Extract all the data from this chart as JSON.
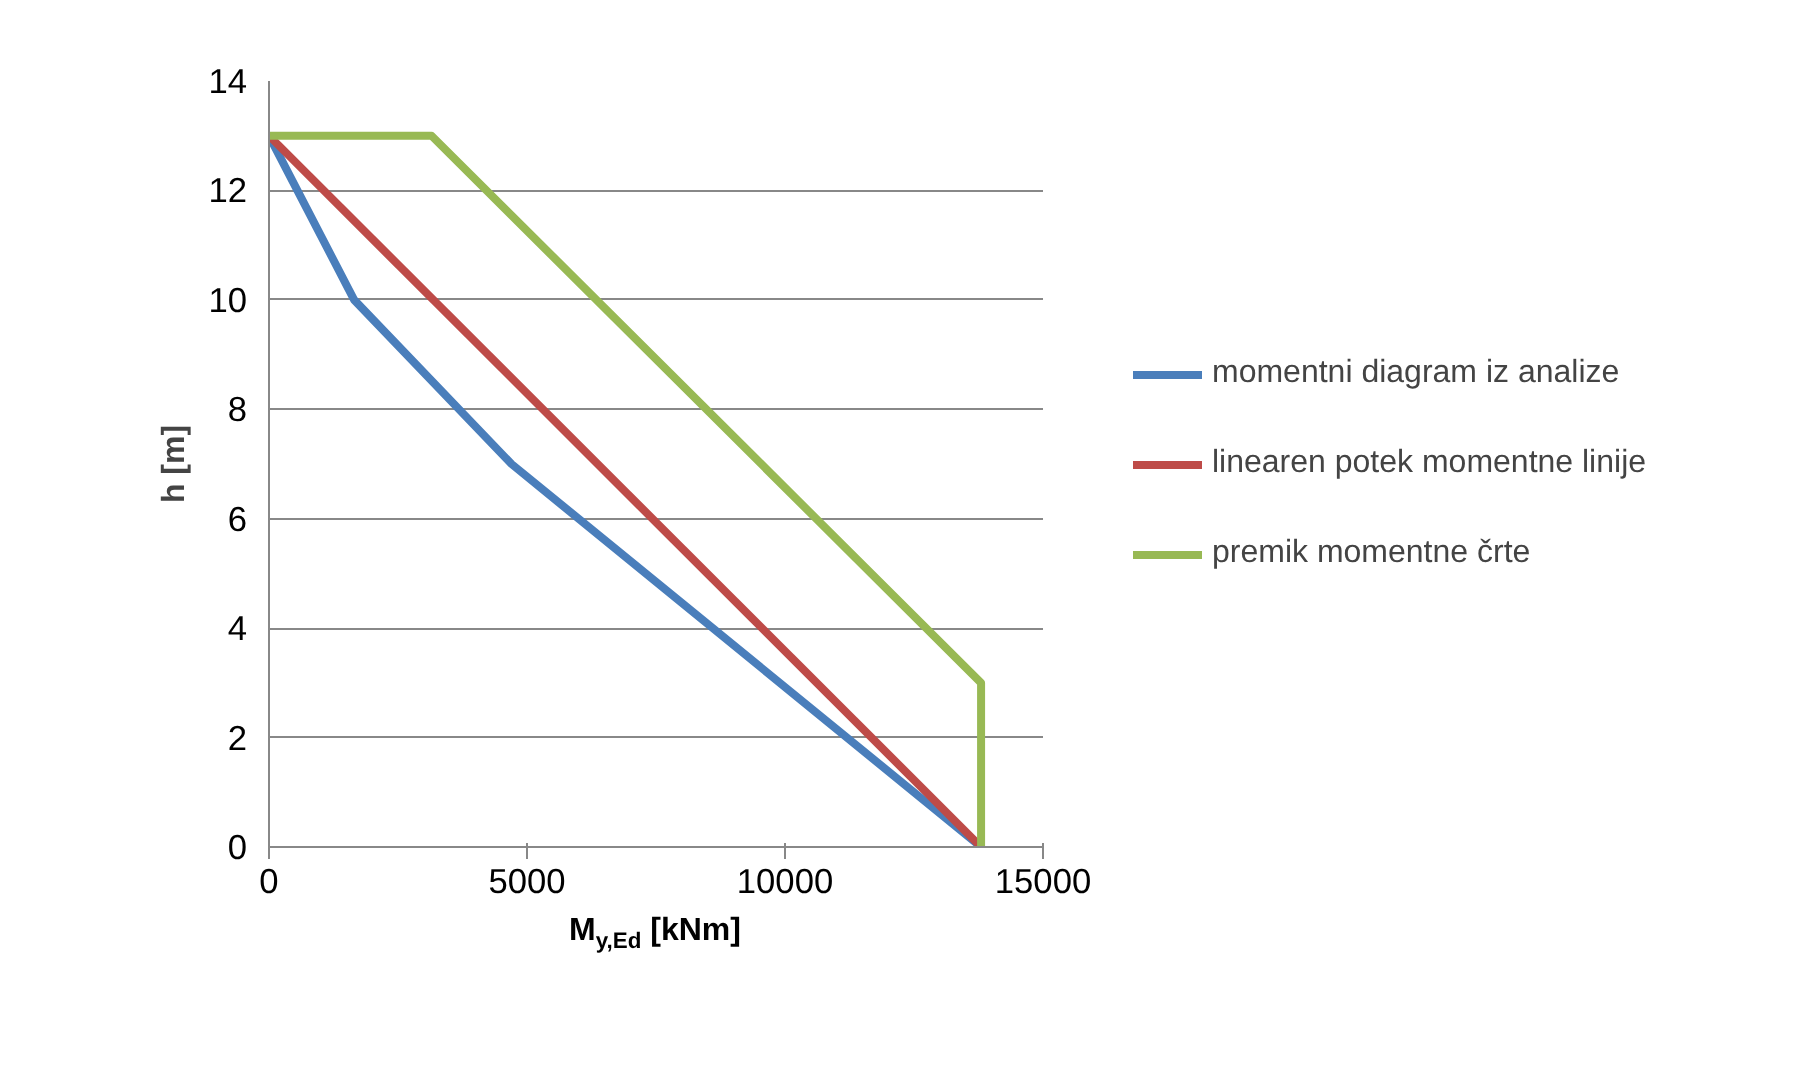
{
  "chart_data": {
    "type": "line",
    "xlabel": "M$_{y,Ed}$ [kNm]",
    "ylabel": "h [m]",
    "xlim": [
      0,
      15000
    ],
    "xticks": [
      0,
      5000,
      10000,
      15000
    ],
    "ylim": [
      0,
      14
    ],
    "yticks": [
      0,
      2,
      4,
      6,
      8,
      10,
      12,
      14
    ],
    "grid": "y",
    "legend": "right",
    "marker": "none",
    "line_style": "solid",
    "series": [
      {
        "name": "momentni diagram iz analize",
        "color": "#4a7ebb",
        "x": [
          0,
          1650,
          4700,
          13800
        ],
        "values": [
          13,
          10,
          7,
          0
        ]
      },
      {
        "name": "linearen potek momentne linije",
        "color": "#be4b48",
        "x": [
          0,
          13800
        ],
        "values": [
          13,
          0
        ]
      },
      {
        "name": "premik momentne črte",
        "color": "#98b954",
        "x": [
          0,
          3150,
          13800,
          13800
        ],
        "values": [
          13,
          13,
          3,
          0
        ]
      }
    ]
  }
}
